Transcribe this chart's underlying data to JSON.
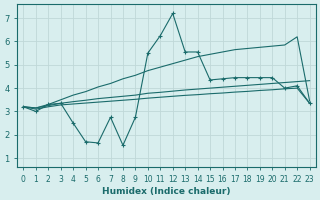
{
  "xlabel": "Humidex (Indice chaleur)",
  "bg_color": "#d8eeee",
  "grid_color": "#c0d8d8",
  "line_color": "#1a6b6b",
  "xlim": [
    -0.5,
    23.5
  ],
  "ylim": [
    0.6,
    7.6
  ],
  "xticks": [
    0,
    1,
    2,
    3,
    4,
    5,
    6,
    7,
    8,
    9,
    10,
    11,
    12,
    13,
    14,
    15,
    16,
    17,
    18,
    19,
    20,
    21,
    22,
    23
  ],
  "yticks": [
    1,
    2,
    3,
    4,
    5,
    6,
    7
  ],
  "line_jagged_x": [
    0,
    1,
    2,
    3,
    4,
    5,
    6,
    7,
    8,
    9,
    10,
    11,
    12,
    13,
    14,
    15,
    16,
    17,
    18,
    19,
    20,
    21,
    22,
    23
  ],
  "line_jagged_y": [
    3.2,
    3.0,
    3.3,
    3.35,
    2.5,
    1.7,
    1.65,
    2.75,
    1.55,
    2.75,
    5.5,
    6.25,
    7.2,
    5.55,
    5.55,
    4.35,
    4.4,
    4.45,
    4.45,
    4.45,
    4.45,
    4.0,
    4.1,
    3.35
  ],
  "line_upper_x": [
    0,
    1,
    2,
    3,
    4,
    5,
    6,
    7,
    8,
    9,
    10,
    11,
    12,
    13,
    14,
    15,
    16,
    17,
    18,
    19,
    20,
    21,
    22,
    23
  ],
  "line_upper_y": [
    3.2,
    3.15,
    3.3,
    3.5,
    3.7,
    3.85,
    4.05,
    4.2,
    4.4,
    4.55,
    4.75,
    4.9,
    5.05,
    5.2,
    5.35,
    5.45,
    5.55,
    5.65,
    5.7,
    5.75,
    5.8,
    5.85,
    6.2,
    3.45
  ],
  "line_mid_x": [
    0,
    1,
    2,
    3,
    4,
    5,
    6,
    7,
    8,
    9,
    10,
    11,
    12,
    13,
    14,
    15,
    16,
    17,
    18,
    19,
    20,
    21,
    22,
    23
  ],
  "line_mid_y": [
    3.2,
    3.15,
    3.25,
    3.35,
    3.42,
    3.48,
    3.55,
    3.6,
    3.65,
    3.7,
    3.78,
    3.82,
    3.87,
    3.92,
    3.96,
    4.0,
    4.04,
    4.08,
    4.12,
    4.16,
    4.2,
    4.24,
    4.28,
    4.32
  ],
  "line_lower_x": [
    0,
    1,
    2,
    3,
    4,
    5,
    6,
    7,
    8,
    9,
    10,
    11,
    12,
    13,
    14,
    15,
    16,
    17,
    18,
    19,
    20,
    21,
    22,
    23
  ],
  "line_lower_y": [
    3.2,
    3.1,
    3.2,
    3.28,
    3.32,
    3.36,
    3.4,
    3.44,
    3.48,
    3.52,
    3.57,
    3.61,
    3.65,
    3.69,
    3.72,
    3.76,
    3.79,
    3.83,
    3.86,
    3.9,
    3.93,
    3.97,
    4.0,
    3.35
  ]
}
